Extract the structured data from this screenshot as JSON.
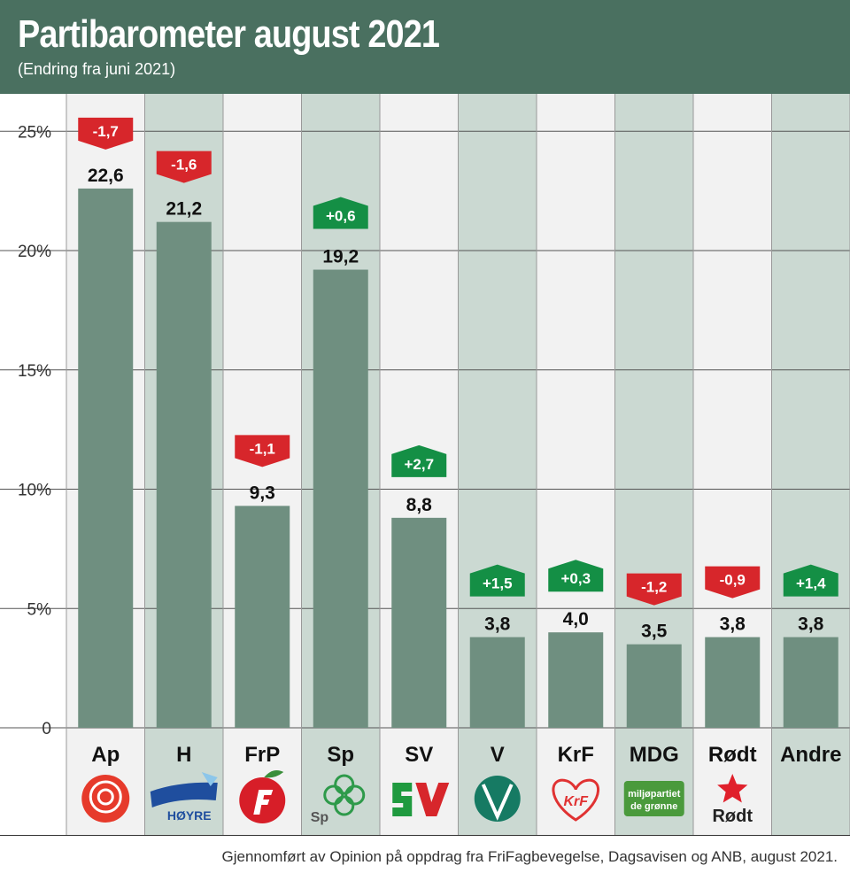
{
  "header": {
    "title": "Partibarometer august 2021",
    "subtitle": "(Endring fra juni 2021)"
  },
  "footer": {
    "source": "Gjennomført av Opinion på oppdrag fra FriFagbevegelse, Dagsavisen og ANB, august 2021."
  },
  "colors": {
    "header_bg": "#4a7060",
    "bar": "#6f8f80",
    "col_light": "#f2f2f2",
    "col_dark": "#cbd9d2",
    "change_negative": "#d7262b",
    "change_positive": "#148f45"
  },
  "logos": {
    "H": "HØYRE",
    "Sp": "Sp",
    "MDG_line1": "miljøpartiet",
    "MDG_line2": "de grønne",
    "Rodt": "Rødt",
    "KrF": "KrF"
  },
  "chart_data": {
    "type": "bar",
    "title": "Partibarometer august 2021",
    "subtitle": "(Endring fra juni 2021)",
    "xlabel": "",
    "ylabel": "",
    "ylim": [
      0,
      25
    ],
    "yticks": [
      0,
      5,
      10,
      15,
      20,
      25
    ],
    "ytick_labels": [
      "0",
      "5%",
      "10%",
      "15%",
      "20%",
      "25%"
    ],
    "grid": true,
    "categories": [
      "Ap",
      "H",
      "FrP",
      "Sp",
      "SV",
      "V",
      "KrF",
      "MDG",
      "Rødt",
      "Andre"
    ],
    "values": [
      22.6,
      21.2,
      9.3,
      19.2,
      8.8,
      3.8,
      4.0,
      3.5,
      3.8,
      3.8
    ],
    "value_labels": [
      "22,6",
      "21,2",
      "9,3",
      "19,2",
      "8,8",
      "3,8",
      "4,0",
      "3,5",
      "3,8",
      "3,8"
    ],
    "changes": [
      -1.7,
      -1.6,
      -1.1,
      0.6,
      2.7,
      1.5,
      0.3,
      -1.2,
      -0.9,
      1.4
    ],
    "change_labels": [
      "-1,7",
      "-1,6",
      "-1,1",
      "+0,6",
      "+2,7",
      "+1,5",
      "+0,3",
      "-1,2",
      "-0,9",
      "+1,4"
    ],
    "logo_icons": [
      "ap-rose-icon",
      "hoyre-logo-icon",
      "frp-apple-icon",
      "sp-clover-icon",
      "sv-logo-icon",
      "venstre-v-icon",
      "krf-heart-icon",
      "mdg-logo-icon",
      "rodt-star-icon",
      ""
    ]
  }
}
